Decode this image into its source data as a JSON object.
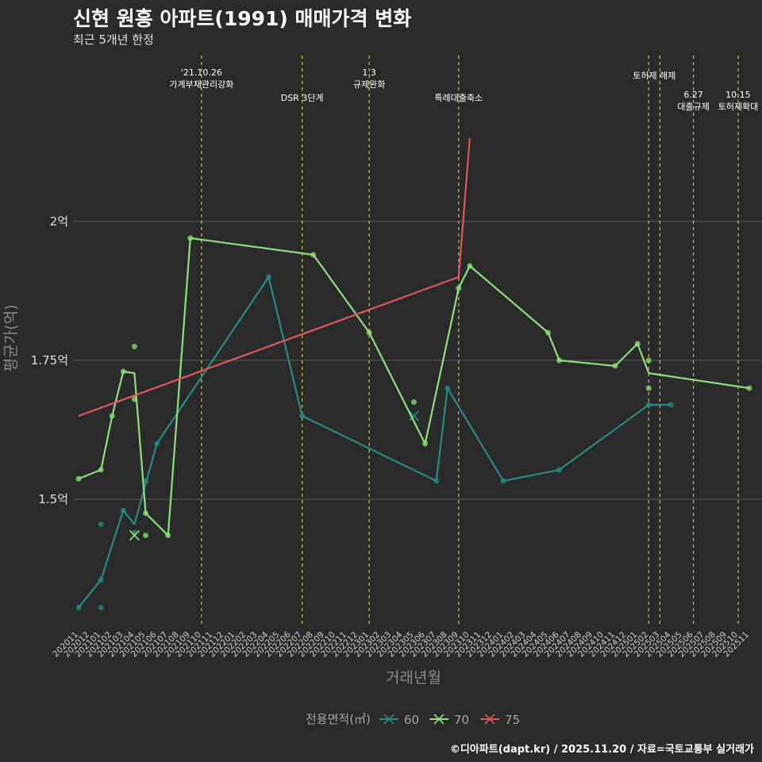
{
  "title": "신현 원흥 아파트(1991) 매매가격 변화",
  "subtitle": "최근 5개년 한정",
  "caption": "©디아파트(dapt.kr) / 2025.11.20 / 자료=국토교통부 실거래가",
  "colors": {
    "background": "#2b2a2b",
    "grid": "#5a5a5a",
    "event_line": "#d7d72a",
    "s60": "#2a8a8a",
    "s70": "#8ee07a",
    "s75": "#e0585a"
  },
  "chart_data": {
    "type": "line",
    "xlabel": "거래년월",
    "ylabel": "평균가(억)",
    "ylim": [
      1.27,
      2.31
    ],
    "yticks": [
      {
        "value": 1.5,
        "label": "1.5억"
      },
      {
        "value": 1.75,
        "label": "1.75억"
      },
      {
        "value": 2.0,
        "label": "2억"
      }
    ],
    "categories": [
      "202011",
      "202012",
      "202101",
      "202102",
      "202103",
      "202104",
      "202105",
      "202106",
      "202107",
      "202108",
      "202109",
      "202110",
      "202111",
      "202112",
      "202201",
      "202202",
      "202203",
      "202204",
      "202205",
      "202206",
      "202207",
      "202208",
      "202209",
      "202210",
      "202211",
      "202212",
      "202301",
      "202302",
      "202303",
      "202304",
      "202305",
      "202306",
      "202307",
      "202308",
      "202309",
      "202310",
      "202311",
      "202312",
      "202401",
      "202402",
      "202403",
      "202404",
      "202405",
      "202406",
      "202407",
      "202408",
      "202409",
      "202410",
      "202411",
      "202412",
      "202501",
      "202502",
      "202503",
      "202504",
      "202505",
      "202506",
      "202507",
      "202508",
      "202509",
      "202510",
      "202511"
    ],
    "events": [
      {
        "month": 11,
        "label": "'21.10.26\n가계부채관리강화",
        "row": 0
      },
      {
        "month": 20,
        "label": "DSR 3단계",
        "row": 1
      },
      {
        "month": 26,
        "label": "1.3\n규제완화",
        "row": 0
      },
      {
        "month": 34,
        "label": "특례대출축소",
        "row": 1
      },
      {
        "month": 51,
        "label": "토허제 해제",
        "row": 0,
        "center_month": 51.5
      },
      {
        "month": 52,
        "label": "",
        "row": 0
      },
      {
        "month": 55,
        "label": "6.27\n대출규제",
        "row": 1
      },
      {
        "month": 59,
        "label": "10.15\n토허제확대",
        "row": 1
      }
    ],
    "series": [
      {
        "name": "60",
        "line": [
          [
            0,
            1.305
          ],
          [
            2,
            1.355
          ],
          [
            4,
            1.48
          ],
          [
            5,
            1.455
          ],
          [
            7,
            1.6
          ],
          [
            17,
            1.9
          ],
          [
            20,
            1.65
          ],
          [
            32,
            1.533
          ],
          [
            33,
            1.7
          ],
          [
            38,
            1.533
          ],
          [
            43,
            1.553
          ],
          [
            51,
            1.67
          ],
          [
            53,
            1.67
          ]
        ],
        "points": [
          [
            0,
            1.305
          ],
          [
            2,
            1.355
          ],
          [
            2,
            1.455
          ],
          [
            2,
            1.305
          ],
          [
            4,
            1.48
          ],
          [
            5,
            1.44
          ],
          [
            6,
            1.533
          ],
          [
            7,
            1.6
          ],
          [
            17,
            1.9
          ],
          [
            20,
            1.65
          ],
          [
            32,
            1.533
          ],
          [
            33,
            1.7
          ],
          [
            38,
            1.533
          ],
          [
            43,
            1.553
          ],
          [
            51,
            1.67
          ],
          [
            53,
            1.67
          ]
        ],
        "cross_points": [
          [
            30,
            1.65
          ]
        ]
      },
      {
        "name": "70",
        "line": [
          [
            0,
            1.537
          ],
          [
            2,
            1.553
          ],
          [
            3,
            1.65
          ],
          [
            4,
            1.73
          ],
          [
            5,
            1.727
          ],
          [
            6,
            1.475
          ],
          [
            8,
            1.435
          ],
          [
            10,
            1.97
          ],
          [
            21,
            1.94
          ],
          [
            26,
            1.8
          ],
          [
            31,
            1.6
          ],
          [
            34,
            1.88
          ],
          [
            35,
            1.92
          ],
          [
            42,
            1.8
          ],
          [
            43,
            1.75
          ],
          [
            48,
            1.74
          ],
          [
            50,
            1.78
          ],
          [
            51,
            1.727
          ],
          [
            60,
            1.7
          ]
        ],
        "points": [
          [
            0,
            1.537
          ],
          [
            2,
            1.553
          ],
          [
            3,
            1.65
          ],
          [
            4,
            1.73
          ],
          [
            5,
            1.775
          ],
          [
            5,
            1.68
          ],
          [
            6,
            1.475
          ],
          [
            6,
            1.435
          ],
          [
            8,
            1.435
          ],
          [
            10,
            1.97
          ],
          [
            21,
            1.94
          ],
          [
            26,
            1.8
          ],
          [
            30,
            1.675
          ],
          [
            31,
            1.6
          ],
          [
            34,
            1.88
          ],
          [
            35,
            1.92
          ],
          [
            42,
            1.8
          ],
          [
            43,
            1.75
          ],
          [
            48,
            1.74
          ],
          [
            50,
            1.78
          ],
          [
            51,
            1.75
          ],
          [
            51,
            1.7
          ],
          [
            60,
            1.7
          ]
        ],
        "cross_points": [
          [
            5,
            1.435
          ]
        ]
      },
      {
        "name": "75",
        "line": [
          [
            0,
            1.65
          ],
          [
            34,
            1.9
          ],
          [
            35,
            2.15
          ]
        ],
        "points": [],
        "cross_points": []
      }
    ],
    "legend": {
      "title": "전용면적(㎡)",
      "position": "bottom",
      "items": [
        "60",
        "70",
        "75"
      ]
    }
  }
}
